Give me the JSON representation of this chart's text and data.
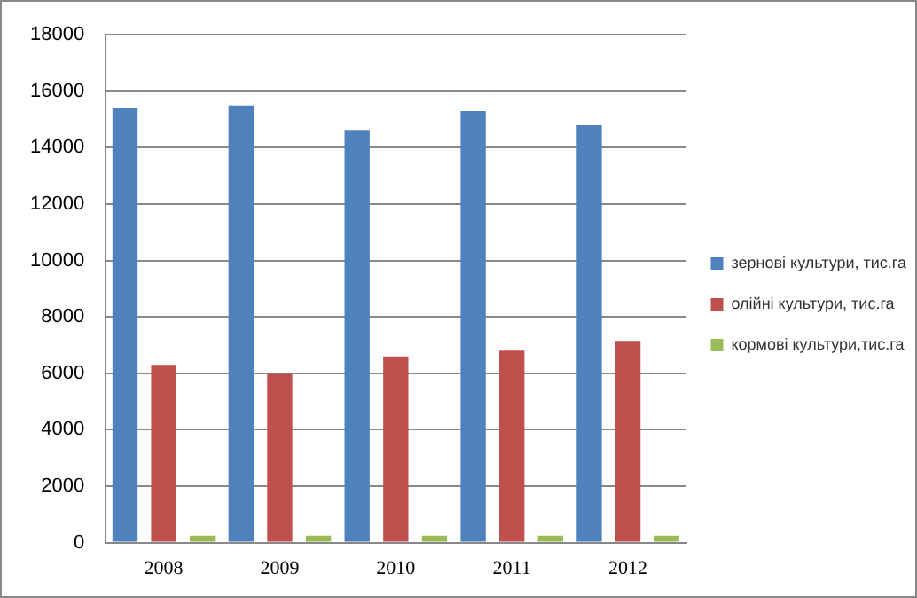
{
  "chart_data": {
    "type": "bar",
    "categories": [
      "2008",
      "2009",
      "2010",
      "2011",
      "2012"
    ],
    "series": [
      {
        "name": "зернові культури, тис.га",
        "color": "#4f81bd",
        "values": [
          15400,
          15500,
          14600,
          15300,
          14800
        ]
      },
      {
        "name": "олійні культури, тис.га",
        "color": "#c0504d",
        "values": [
          6300,
          6000,
          6600,
          6800,
          7150
        ]
      },
      {
        "name": "кормові культури,тис.га",
        "color": "#9bbb59",
        "values": [
          250,
          250,
          250,
          250,
          250
        ]
      }
    ],
    "ylim": [
      0,
      18000
    ],
    "yticks": [
      0,
      2000,
      4000,
      6000,
      8000,
      10000,
      12000,
      14000,
      16000,
      18000
    ],
    "grid": "y",
    "legend": "right"
  }
}
